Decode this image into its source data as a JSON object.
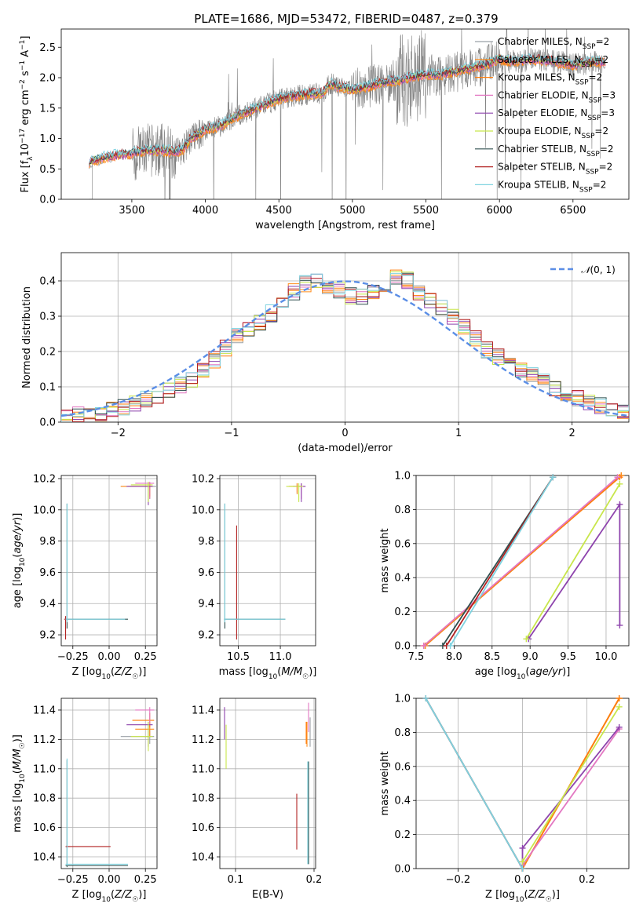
{
  "figure": {
    "title": "PLATE=1686, MJD=53472, FIBERID=0487, z=0.379"
  },
  "model_colors": {
    "Chabrier MILES": "#9aa0a6",
    "Salpeter MILES": "#ff8c1a",
    "Kroupa MILES": "#ff7f0e",
    "Chabrier ELODIE": "#e377c2",
    "Salpeter ELODIE": "#8e44ad",
    "Kroupa ELODIE": "#c8e64b",
    "Chabrier STELIB": "#2f4f4f",
    "Salpeter STELIB": "#b22222",
    "Kroupa STELIB": "#7fd3e0"
  },
  "chart_data": [
    {
      "id": "spectrum",
      "type": "line",
      "title": "PLATE=1686, MJD=53472, FIBERID=0487, z=0.379",
      "xlabel": "wavelength [Angstrom, rest frame]",
      "ylabel": "Flux [f_λ 10^-17 erg cm^-2 s^-1 A^-1]",
      "xlim": [
        3020,
        6880
      ],
      "ylim": [
        0,
        2.8
      ],
      "xticks": [
        3500,
        4000,
        4500,
        5000,
        5500,
        6000,
        6500
      ],
      "yticks": [
        0.0,
        0.5,
        1.0,
        1.5,
        2.0,
        2.5
      ],
      "grid": false,
      "legend_position": "top-right",
      "data_color": "#808080",
      "continuum": {
        "x": [
          3200,
          3300,
          3400,
          3500,
          3600,
          3700,
          3800,
          3850,
          3900,
          3950,
          4000,
          4100,
          4200,
          4300,
          4400,
          4500,
          4600,
          4700,
          4800,
          4850,
          4900,
          5000,
          5100,
          5200,
          5300,
          5400,
          5500,
          5600,
          5700,
          5800,
          5900,
          6000,
          6100,
          6200,
          6300,
          6400,
          6500,
          6600,
          6700
        ],
        "y": [
          0.6,
          0.68,
          0.72,
          0.75,
          0.8,
          0.8,
          0.78,
          0.82,
          1.0,
          1.05,
          1.15,
          1.2,
          1.35,
          1.45,
          1.55,
          1.65,
          1.7,
          1.72,
          1.75,
          1.9,
          1.85,
          1.8,
          1.85,
          1.92,
          1.95,
          2.0,
          2.05,
          2.05,
          2.1,
          2.15,
          2.2,
          2.3,
          2.25,
          2.3,
          2.28,
          2.25,
          2.2,
          2.25,
          2.25
        ]
      },
      "legend": [
        {
          "label": "Chabrier MILES, N_SSP=2",
          "color": "#9aa0a6",
          "name": "Chabrier MILES",
          "nssp": "2"
        },
        {
          "label": "Salpeter MILES, N_SSP=2",
          "color": "#ff8c1a",
          "name": "Salpeter MILES",
          "nssp": "2"
        },
        {
          "label": "Kroupa MILES, N_SSP=2",
          "color": "#ff7f0e",
          "name": "Kroupa MILES",
          "nssp": "2"
        },
        {
          "label": "Chabrier ELODIE, N_SSP=3",
          "color": "#e377c2",
          "name": "Chabrier ELODIE",
          "nssp": "3"
        },
        {
          "label": "Salpeter ELODIE, N_SSP=3",
          "color": "#8e44ad",
          "name": "Salpeter ELODIE",
          "nssp": "3"
        },
        {
          "label": "Kroupa ELODIE, N_SSP=2",
          "color": "#c8e64b",
          "name": "Kroupa ELODIE",
          "nssp": "2"
        },
        {
          "label": "Chabrier STELIB, N_SSP=2",
          "color": "#2f4f4f",
          "name": "Chabrier STELIB",
          "nssp": "2"
        },
        {
          "label": "Salpeter STELIB, N_SSP=2",
          "color": "#b22222",
          "name": "Salpeter STELIB",
          "nssp": "2"
        },
        {
          "label": "Kroupa STELIB, N_SSP=2",
          "color": "#7fd3e0",
          "name": "Kroupa STELIB",
          "nssp": "2"
        }
      ]
    },
    {
      "id": "residuals",
      "type": "line",
      "xlabel": "(data-model)/error",
      "ylabel": "Normed distribution",
      "xlim": [
        -2.5,
        2.5
      ],
      "ylim": [
        0,
        0.48
      ],
      "xticks": [
        -2,
        -1,
        0,
        1,
        2
      ],
      "yticks": [
        0.0,
        0.1,
        0.2,
        0.3,
        0.4
      ],
      "grid": true,
      "legend_position": "top-right",
      "reference_curve": {
        "label": "N(0,1)",
        "color": "#5b8ee6",
        "mean": 0,
        "sigma": 1
      },
      "histogram_bin_width": 0.1,
      "histogram_profile": {
        "x": [
          -2.5,
          -2.3,
          -2.1,
          -1.9,
          -1.7,
          -1.5,
          -1.3,
          -1.1,
          -0.9,
          -0.7,
          -0.5,
          -0.3,
          -0.1,
          0.1,
          0.3,
          0.5,
          0.7,
          0.9,
          1.1,
          1.3,
          1.5,
          1.7,
          1.9,
          2.1,
          2.3,
          2.5
        ],
        "y": [
          0.015,
          0.02,
          0.03,
          0.045,
          0.07,
          0.095,
          0.13,
          0.19,
          0.26,
          0.29,
          0.36,
          0.4,
          0.38,
          0.35,
          0.38,
          0.42,
          0.35,
          0.32,
          0.25,
          0.19,
          0.16,
          0.12,
          0.09,
          0.06,
          0.04,
          0.03
        ]
      }
    },
    {
      "id": "age-vs-Z",
      "type": "scatter",
      "xlabel": "Z [log10(Z/Z☉)]",
      "ylabel": "age  [log10(age/yr)]",
      "xlim": [
        -0.33,
        0.33
      ],
      "ylim": [
        9.13,
        10.22
      ],
      "xticks": [
        -0.25,
        0.0,
        0.25
      ],
      "yticks": [
        9.2,
        9.4,
        9.6,
        9.8,
        10.0,
        10.2
      ],
      "grid": true,
      "points": [
        {
          "model": "Chabrier MILES",
          "x": 0.28,
          "y": 10.15,
          "xerr": [
            0.2,
            0.05
          ],
          "yerr": [
            0.08,
            0.02
          ]
        },
        {
          "model": "Salpeter MILES",
          "x": 0.28,
          "y": 10.15,
          "xerr": [
            0.2,
            0.02
          ],
          "yerr": [
            0.07,
            0.02
          ]
        },
        {
          "model": "Kroupa MILES",
          "x": 0.28,
          "y": 10.15,
          "xerr": [
            0.15,
            0.02
          ],
          "yerr": [
            0.06,
            0.02
          ]
        },
        {
          "model": "Chabrier ELODIE",
          "x": 0.28,
          "y": 10.17,
          "xerr": [
            0.1,
            0.03
          ],
          "yerr": [
            0.1,
            0.01
          ]
        },
        {
          "model": "Salpeter ELODIE",
          "x": 0.27,
          "y": 10.15,
          "xerr": [
            0.15,
            0.03
          ],
          "yerr": [
            0.12,
            0.02
          ]
        },
        {
          "model": "Kroupa ELODIE",
          "x": 0.27,
          "y": 10.16,
          "xerr": [
            0.12,
            0.03
          ],
          "yerr": [
            0.11,
            0.02
          ]
        },
        {
          "model": "Chabrier STELIB",
          "x": -0.29,
          "y": 9.3,
          "xerr": [
            0.01,
            0.42
          ],
          "yerr": [
            0.06,
            0.74
          ]
        },
        {
          "model": "Salpeter STELIB",
          "x": -0.3,
          "y": 9.3,
          "xerr": [
            0.01,
            0.02
          ],
          "yerr": [
            0.13,
            0.02
          ]
        },
        {
          "model": "Kroupa STELIB",
          "x": -0.29,
          "y": 9.3,
          "xerr": [
            0.01,
            0.4
          ],
          "yerr": [
            0.02,
            0.74
          ]
        }
      ]
    },
    {
      "id": "age-vs-mass",
      "type": "scatter",
      "xlabel": "mass [log10(M/M☉)]",
      "ylabel": "",
      "xlim": [
        10.28,
        11.42
      ],
      "ylim": [
        9.13,
        10.22
      ],
      "xticks": [
        10.5,
        11.0
      ],
      "yticks": [
        9.2,
        9.4,
        9.6,
        9.8,
        10.0,
        10.2
      ],
      "grid": true,
      "points": [
        {
          "model": "Chabrier MILES",
          "x": 11.2,
          "y": 10.15,
          "xerr": [
            0.05,
            0.05
          ],
          "yerr": [
            0.05,
            0.02
          ]
        },
        {
          "model": "Salpeter MILES",
          "x": 11.2,
          "y": 10.15,
          "xerr": [
            0.1,
            0.05
          ],
          "yerr": [
            0.05,
            0.02
          ]
        },
        {
          "model": "Kroupa MILES",
          "x": 11.2,
          "y": 10.15,
          "xerr": [
            0.1,
            0.05
          ],
          "yerr": [
            0.04,
            0.02
          ]
        },
        {
          "model": "Chabrier ELODIE",
          "x": 11.25,
          "y": 10.15,
          "xerr": [
            0.05,
            0.05
          ],
          "yerr": [
            0.08,
            0.02
          ]
        },
        {
          "model": "Salpeter ELODIE",
          "x": 11.25,
          "y": 10.15,
          "xerr": [
            0.1,
            0.05
          ],
          "yerr": [
            0.1,
            0.02
          ]
        },
        {
          "model": "Kroupa ELODIE",
          "x": 11.22,
          "y": 10.15,
          "xerr": [
            0.15,
            0.05
          ],
          "yerr": [
            0.1,
            0.02
          ]
        },
        {
          "model": "Chabrier STELIB",
          "x": 10.34,
          "y": 9.3,
          "xerr": [
            0.01,
            0.72
          ],
          "yerr": [
            0.06,
            0.74
          ]
        },
        {
          "model": "Salpeter STELIB",
          "x": 10.48,
          "y": 9.3,
          "xerr": [
            0.01,
            0.01
          ],
          "yerr": [
            0.13,
            0.6
          ]
        },
        {
          "model": "Kroupa STELIB",
          "x": 10.34,
          "y": 9.3,
          "xerr": [
            0.01,
            0.72
          ],
          "yerr": [
            0.02,
            0.74
          ]
        }
      ]
    },
    {
      "id": "weight-vs-age",
      "type": "line",
      "xlabel": "age  [log10(age/yr)]",
      "ylabel": "mass weight",
      "xlim": [
        7.5,
        10.3
      ],
      "ylim": [
        0,
        1.0
      ],
      "xticks": [
        7.5,
        8.0,
        8.5,
        9.0,
        9.5,
        10.0
      ],
      "yticks": [
        0.0,
        0.2,
        0.4,
        0.6,
        0.8,
        1.0
      ],
      "grid": true,
      "lines": [
        {
          "model": "Chabrier MILES",
          "x": [
            7.62,
            10.2
          ],
          "y": [
            0.0,
            1.0
          ]
        },
        {
          "model": "Salpeter MILES",
          "x": [
            7.62,
            10.2
          ],
          "y": [
            0.0,
            1.0
          ]
        },
        {
          "model": "Kroupa MILES",
          "x": [
            7.6,
            10.18
          ],
          "y": [
            0.0,
            0.99
          ]
        },
        {
          "model": "Chabrier ELODIE",
          "x": [
            7.6,
            10.15
          ],
          "y": [
            0.0,
            0.99
          ]
        },
        {
          "model": "Salpeter ELODIE",
          "x": [
            8.98,
            10.18,
            10.18
          ],
          "y": [
            0.04,
            0.83,
            0.12
          ]
        },
        {
          "model": "Kroupa ELODIE",
          "x": [
            8.95,
            10.18
          ],
          "y": [
            0.04,
            0.95
          ]
        },
        {
          "model": "Chabrier STELIB",
          "x": [
            7.85,
            9.3
          ],
          "y": [
            0.0,
            0.99
          ]
        },
        {
          "model": "Salpeter STELIB",
          "x": [
            7.9,
            9.3
          ],
          "y": [
            0.0,
            0.99
          ]
        },
        {
          "model": "Kroupa STELIB",
          "x": [
            7.95,
            9.3
          ],
          "y": [
            0.0,
            0.99
          ]
        }
      ]
    },
    {
      "id": "mass-vs-Z",
      "type": "scatter",
      "xlabel": "Z [log10(Z/Z☉)]",
      "ylabel": "mass [log10(M/M☉)]",
      "xlim": [
        -0.33,
        0.33
      ],
      "ylim": [
        10.32,
        11.48
      ],
      "xticks": [
        -0.25,
        0.0,
        0.25
      ],
      "yticks": [
        10.4,
        10.6,
        10.8,
        11.0,
        11.2,
        11.4
      ],
      "grid": true,
      "points": [
        {
          "model": "Chabrier MILES",
          "x": 0.28,
          "y": 11.22,
          "xerr": [
            0.2,
            0.03
          ],
          "yerr": [
            0.05,
            0.05
          ]
        },
        {
          "model": "Salpeter MILES",
          "x": 0.28,
          "y": 11.27,
          "xerr": [
            0.1,
            0.03
          ],
          "yerr": [
            0.05,
            0.05
          ]
        },
        {
          "model": "Kroupa MILES",
          "x": 0.28,
          "y": 11.33,
          "xerr": [
            0.12,
            0.03
          ],
          "yerr": [
            0.05,
            0.05
          ]
        },
        {
          "model": "Chabrier ELODIE",
          "x": 0.28,
          "y": 11.4,
          "xerr": [
            0.1,
            0.03
          ],
          "yerr": [
            0.1,
            0.02
          ]
        },
        {
          "model": "Salpeter ELODIE",
          "x": 0.27,
          "y": 11.3,
          "xerr": [
            0.15,
            0.03
          ],
          "yerr": [
            0.15,
            0.02
          ]
        },
        {
          "model": "Kroupa ELODIE",
          "x": 0.27,
          "y": 11.22,
          "xerr": [
            0.12,
            0.03
          ],
          "yerr": [
            0.1,
            0.1
          ]
        },
        {
          "model": "Chabrier STELIB",
          "x": -0.29,
          "y": 10.34,
          "xerr": [
            0.01,
            0.42
          ],
          "yerr": [
            0.01,
            0.72
          ]
        },
        {
          "model": "Salpeter STELIB",
          "x": -0.29,
          "y": 10.47,
          "xerr": [
            0.01,
            0.3
          ],
          "yerr": [
            0.01,
            0.01
          ]
        },
        {
          "model": "Kroupa STELIB",
          "x": -0.29,
          "y": 10.35,
          "xerr": [
            0.01,
            0.42
          ],
          "yerr": [
            0.01,
            0.72
          ]
        }
      ]
    },
    {
      "id": "mass-vs-ebv",
      "type": "scatter",
      "xlabel": "E(B-V)",
      "ylabel": "",
      "xlim": [
        0.08,
        0.202
      ],
      "ylim": [
        10.32,
        11.48
      ],
      "xticks": [
        0.1,
        0.2
      ],
      "yticks": [
        10.4,
        10.6,
        10.8,
        11.0,
        11.2,
        11.4
      ],
      "grid": true,
      "points": [
        {
          "model": "Chabrier MILES",
          "x": 0.195,
          "y": 11.25,
          "yerr": [
            0.1,
            0.1
          ]
        },
        {
          "model": "Salpeter MILES",
          "x": 0.191,
          "y": 11.25,
          "yerr": [
            0.1,
            0.07
          ]
        },
        {
          "model": "Kroupa MILES",
          "x": 0.19,
          "y": 11.25,
          "yerr": [
            0.08,
            0.07
          ]
        },
        {
          "model": "Chabrier ELODIE",
          "x": 0.193,
          "y": 11.35,
          "yerr": [
            0.1,
            0.1
          ]
        },
        {
          "model": "Salpeter ELODIE",
          "x": 0.086,
          "y": 11.3,
          "yerr": [
            0.1,
            0.12
          ]
        },
        {
          "model": "Kroupa ELODIE",
          "x": 0.088,
          "y": 11.2,
          "yerr": [
            0.2,
            0.1
          ]
        },
        {
          "model": "Chabrier STELIB",
          "x": 0.193,
          "y": 10.7,
          "yerr": [
            0.35,
            0.35
          ]
        },
        {
          "model": "Salpeter STELIB",
          "x": 0.178,
          "y": 10.65,
          "yerr": [
            0.2,
            0.18
          ]
        },
        {
          "model": "Kroupa STELIB",
          "x": 0.192,
          "y": 10.7,
          "yerr": [
            0.35,
            0.35
          ]
        }
      ]
    },
    {
      "id": "weight-vs-Z",
      "type": "line",
      "xlabel": "Z [log10(Z/Z☉)]",
      "ylabel": "mass weight",
      "xlim": [
        -0.33,
        0.33
      ],
      "ylim": [
        0,
        1.0
      ],
      "xticks": [
        -0.2,
        0.0,
        0.2
      ],
      "yticks": [
        0.0,
        0.2,
        0.4,
        0.6,
        0.8,
        1.0
      ],
      "grid": true,
      "lines": [
        {
          "model": "Chabrier MILES",
          "x": [
            0.0,
            0.3
          ],
          "y": [
            0.0,
            1.0
          ]
        },
        {
          "model": "Salpeter MILES",
          "x": [
            0.0,
            0.3
          ],
          "y": [
            0.0,
            1.0
          ]
        },
        {
          "model": "Kroupa MILES",
          "x": [
            0.0,
            0.3
          ],
          "y": [
            0.0,
            1.0
          ]
        },
        {
          "model": "Chabrier ELODIE",
          "x": [
            0.0,
            0.3
          ],
          "y": [
            0.02,
            0.82
          ]
        },
        {
          "model": "Salpeter ELODIE",
          "x": [
            0.0,
            0.0,
            0.3
          ],
          "y": [
            0.04,
            0.12,
            0.83
          ]
        },
        {
          "model": "Kroupa ELODIE",
          "x": [
            0.0,
            0.3
          ],
          "y": [
            0.04,
            0.95
          ]
        },
        {
          "model": "Chabrier STELIB",
          "x": [
            -0.3,
            0.0
          ],
          "y": [
            1.0,
            0.0
          ]
        },
        {
          "model": "Salpeter STELIB",
          "x": [
            -0.3,
            0.0
          ],
          "y": [
            1.0,
            0.0
          ]
        },
        {
          "model": "Kroupa STELIB",
          "x": [
            -0.3,
            0.0
          ],
          "y": [
            1.0,
            0.0
          ]
        }
      ]
    }
  ]
}
